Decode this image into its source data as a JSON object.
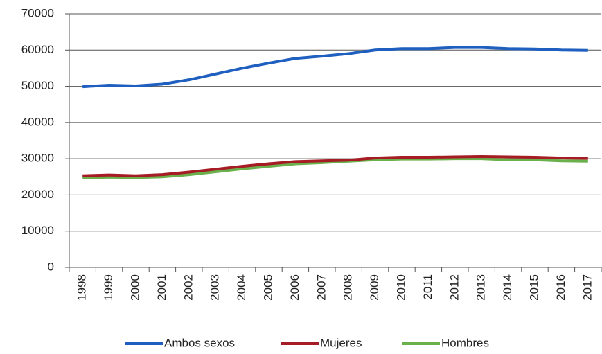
{
  "chart_data": {
    "type": "line",
    "categories": [
      "1998",
      "1999",
      "2000",
      "2001",
      "2002",
      "2003",
      "2004",
      "2005",
      "2006",
      "2007",
      "2008",
      "2009",
      "2010",
      "2011",
      "2012",
      "2013",
      "2014",
      "2015",
      "2016",
      "2017"
    ],
    "series": [
      {
        "name": "Ambos sexos",
        "color": "#1f5fbf",
        "values": [
          49900,
          50300,
          50100,
          50600,
          51800,
          53400,
          55000,
          56400,
          57700,
          58300,
          59000,
          60000,
          60400,
          60400,
          60700,
          60700,
          60400,
          60300,
          60000,
          59900
        ]
      },
      {
        "name": "Mujeres",
        "color": "#a51c24",
        "values": [
          25300,
          25500,
          25300,
          25600,
          26300,
          27100,
          27900,
          28600,
          29200,
          29400,
          29600,
          30200,
          30400,
          30400,
          30500,
          30600,
          30500,
          30400,
          30200,
          30100
        ]
      },
      {
        "name": "Hombres",
        "color": "#6ab04c",
        "values": [
          24700,
          24900,
          24800,
          25000,
          25600,
          26400,
          27200,
          27900,
          28600,
          28900,
          29300,
          29700,
          29900,
          29900,
          30000,
          30000,
          29700,
          29700,
          29400,
          29300
        ]
      }
    ],
    "ylim": [
      0,
      70000
    ],
    "yticks": [
      0,
      10000,
      20000,
      30000,
      40000,
      50000,
      60000,
      70000
    ],
    "grid": true,
    "legend": "bottom"
  }
}
